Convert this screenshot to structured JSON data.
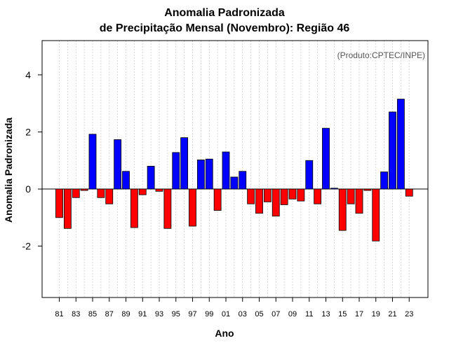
{
  "chart_data": {
    "type": "bar",
    "title": "Anomalia Padronizada",
    "subtitle": "de Precipitação Mensal (Novembro): Região 46",
    "xlabel": "Ano",
    "ylabel": "Anomalia Padronizada",
    "annotation": "(Produto:CPTEC/INPE)",
    "ylim": [
      -3.8,
      5.2
    ],
    "yticks": [
      -2,
      0,
      2,
      4
    ],
    "ytick_labels": [
      "-2",
      "0",
      "2",
      "4"
    ],
    "categories": [
      "81",
      "82",
      "83",
      "84",
      "85",
      "86",
      "87",
      "88",
      "89",
      "90",
      "91",
      "92",
      "93",
      "94",
      "95",
      "96",
      "97",
      "98",
      "99",
      "00",
      "01",
      "02",
      "03",
      "04",
      "05",
      "06",
      "07",
      "08",
      "09",
      "10",
      "11",
      "12",
      "13",
      "14",
      "15",
      "16",
      "17",
      "18",
      "19",
      "20",
      "21",
      "22",
      "23"
    ],
    "xtick_labels": [
      "81",
      "83",
      "85",
      "87",
      "89",
      "91",
      "93",
      "95",
      "97",
      "99",
      "01",
      "03",
      "05",
      "07",
      "09",
      "11",
      "13",
      "15",
      "17",
      "19",
      "21",
      "23"
    ],
    "values": [
      -1.0,
      -1.38,
      -0.3,
      -0.05,
      1.92,
      -0.3,
      -0.52,
      1.73,
      0.62,
      -1.35,
      -0.2,
      0.8,
      -0.08,
      -1.38,
      1.28,
      1.8,
      -1.3,
      1.02,
      1.05,
      -0.75,
      1.3,
      0.42,
      0.62,
      -0.52,
      -0.85,
      -0.45,
      -0.95,
      -0.55,
      -0.35,
      -0.42,
      1.0,
      -0.52,
      2.13,
      0.03,
      -1.45,
      -0.52,
      -0.85,
      -0.05,
      -1.82,
      0.6,
      2.7,
      3.15,
      -0.25
    ],
    "colors": {
      "positive": "#0000ff",
      "negative": "#ff0000",
      "grid": "#cccccc"
    }
  }
}
